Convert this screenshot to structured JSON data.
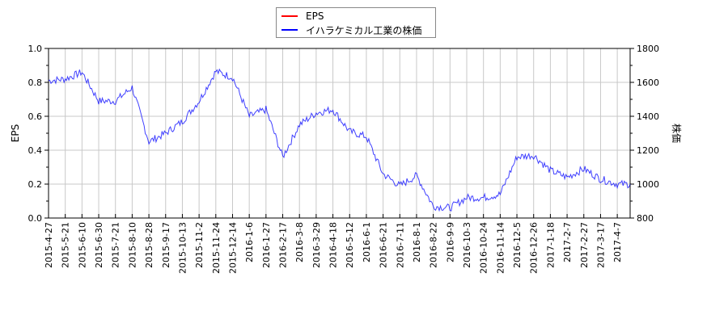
{
  "chart_data": {
    "type": "line",
    "title": "",
    "legend": {
      "position": "top-center",
      "entries": [
        {
          "name": "EPS",
          "color": "#ff0000"
        },
        {
          "name": "イハラケミカル工業の株価",
          "color": "#0000ff"
        }
      ]
    },
    "xlabel": "",
    "ylabel_left": "EPS",
    "ylabel_right": "株価",
    "ylim_left": [
      0.0,
      1.0
    ],
    "ylim_right": [
      800,
      1800
    ],
    "yticks_left": [
      "0.0",
      "0.2",
      "0.4",
      "0.6",
      "0.8",
      "1.0"
    ],
    "yticks_right": [
      "800",
      "1000",
      "1200",
      "1400",
      "1600",
      "1800"
    ],
    "grid": true,
    "categories": [
      "2015-4-27",
      "2015-5-21",
      "2015-6-10",
      "2015-6-30",
      "2015-7-21",
      "2015-8-10",
      "2015-8-28",
      "2015-9-17",
      "2015-10-13",
      "2015-11-2",
      "2015-11-24",
      "2015-12-14",
      "2016-1-6",
      "2016-1-27",
      "2016-2-17",
      "2016-3-8",
      "2016-3-29",
      "2016-4-18",
      "2016-5-12",
      "2016-6-1",
      "2016-6-21",
      "2016-7-11",
      "2016-8-1",
      "2016-8-22",
      "2016-9-9",
      "2016-10-3",
      "2016-10-24",
      "2016-11-14",
      "2016-12-5",
      "2016-12-26",
      "2017-1-18",
      "2017-2-7",
      "2017-2-27",
      "2017-3-17",
      "2017-4-7"
    ],
    "series": [
      {
        "name": "EPS",
        "axis": "left",
        "color": "#ff0000",
        "values": []
      },
      {
        "name": "イハラケミカル工業の株価",
        "axis": "right",
        "color": "#0000ff",
        "values": [
          1610,
          1620,
          1660,
          1490,
          1490,
          1570,
          1250,
          1300,
          1370,
          1490,
          1665,
          1630,
          1400,
          1440,
          1160,
          1350,
          1420,
          1440,
          1310,
          1280,
          1060,
          990,
          1050,
          870,
          860,
          920,
          920,
          940,
          1160,
          1170,
          1080,
          1040,
          1090,
          1030,
          1000
        ]
      }
    ]
  }
}
